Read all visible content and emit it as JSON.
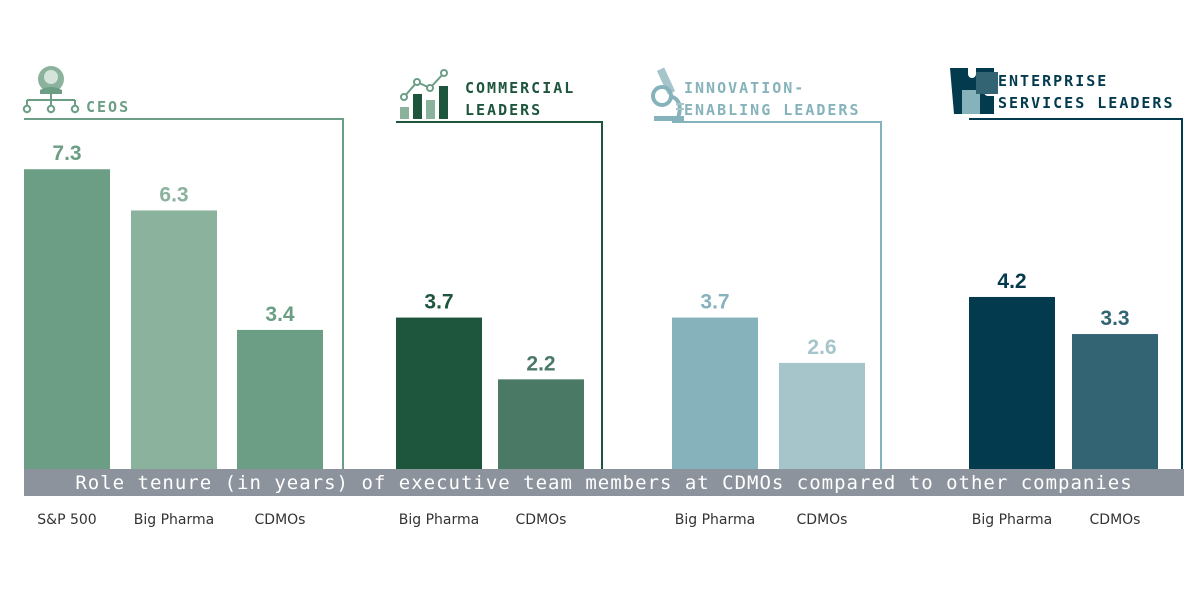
{
  "caption": "Role tenure (in years) of executive team members at CDMOs compared to other companies",
  "chart_data": {
    "type": "bar",
    "groups": [
      {
        "title_lines": [
          "CEOS"
        ],
        "icon": "org-chart-person-icon",
        "color": "#6b9e85",
        "bars": [
          {
            "category": "S&P 500",
            "value": 7.3,
            "color": "#6b9e85"
          },
          {
            "category": "Big Pharma",
            "value": 6.3,
            "color": "#8bb29c"
          },
          {
            "category": "CDMOs",
            "value": 3.4,
            "color": "#6b9e85"
          }
        ]
      },
      {
        "title_lines": [
          "COMMERCIAL",
          "LEADERS"
        ],
        "icon": "growth-chart-icon",
        "color": "#1e563d",
        "bars": [
          {
            "category": "Big Pharma",
            "value": 3.7,
            "color": "#1e563d"
          },
          {
            "category": "CDMOs",
            "value": 2.2,
            "color": "#4a7a66"
          }
        ]
      },
      {
        "title_lines": [
          "INNOVATION-",
          "ENABLING LEADERS"
        ],
        "icon": "microscope-icon",
        "color": "#86b3bb",
        "bars": [
          {
            "category": "Big Pharma",
            "value": 3.7,
            "color": "#86b3bb"
          },
          {
            "category": "CDMOs",
            "value": 2.6,
            "color": "#a5c5cb"
          }
        ]
      },
      {
        "title_lines": [
          "ENTERPRISE",
          "SERVICES LEADERS"
        ],
        "icon": "puzzle-icon",
        "color": "#043a4e",
        "bars": [
          {
            "category": "Big Pharma",
            "value": 4.2,
            "color": "#043a4e"
          },
          {
            "category": "CDMOs",
            "value": 3.3,
            "color": "#336474"
          }
        ]
      }
    ],
    "ylim": [
      0,
      8.5
    ],
    "grid": false,
    "legend": "none"
  },
  "colors": {
    "caption_band": "#8c939c",
    "tick_text": "#333333"
  }
}
